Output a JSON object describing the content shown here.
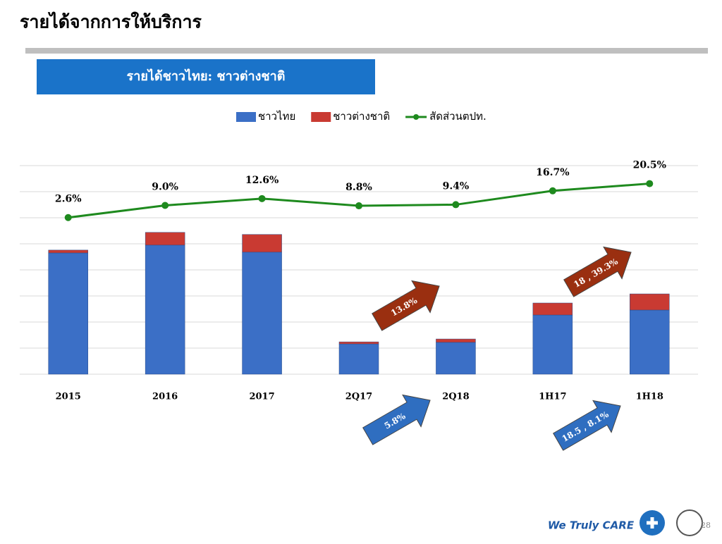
{
  "header": {
    "title": "รายได้จากการให้บริการ",
    "subtitle": "รายได้ชาวไทย: ชาวต่างชาติ"
  },
  "chart_data": {
    "type": "bar-line",
    "categories": [
      "2015",
      "2016",
      "2017",
      "2Q17",
      "2Q18",
      "1H17",
      "1H18"
    ],
    "series": [
      {
        "name": "ชาวไทย",
        "color": "#3b6fc6",
        "values": [
          4.65,
          4.95,
          4.68,
          1.16,
          1.22,
          2.27,
          2.46
        ]
      },
      {
        "name": "ชาวต่างชาติ",
        "color": "#c93a32",
        "values": [
          0.11,
          0.49,
          0.68,
          0.08,
          0.13,
          0.46,
          0.62
        ]
      },
      {
        "name": "สัดส่วนตปท.",
        "color": "#1e8a1e",
        "axis": "y2",
        "values": [
          2.6,
          9.0,
          12.6,
          8.8,
          9.4,
          16.7,
          20.5
        ],
        "value_labels": [
          "2.6%",
          "9.0%",
          "12.6%",
          "8.8%",
          "9.4%",
          "16.7%",
          "20.5%"
        ]
      }
    ],
    "ylim": [
      0,
      8
    ],
    "yticks": [
      0,
      1,
      2,
      3,
      4,
      5,
      6,
      7,
      8
    ],
    "grid": true,
    "y2lim": [
      -80,
      30
    ],
    "annotations": [
      "13.8%",
      "18 , 39.3%",
      "5.8%",
      "18.5 , 8.1%"
    ]
  },
  "footer": {
    "slogan": "We Truly CARE",
    "page": "28"
  }
}
